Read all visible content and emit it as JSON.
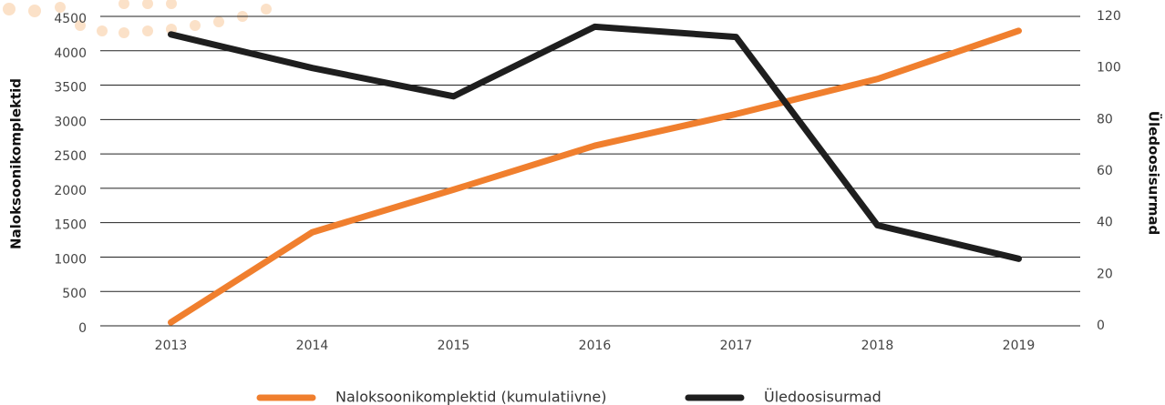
{
  "chart_data": {
    "type": "line",
    "ylabel": "Naloksoonikomplektid",
    "y2label": "Üledoosisurmad",
    "categories": [
      "2013",
      "2014",
      "2015",
      "2016",
      "2017",
      "2018",
      "2019"
    ],
    "series": [
      {
        "name": "Naloksoonikomplektid (kumulatiivne)",
        "color": "#f07f2e",
        "values": [
          50,
          1360,
          1980,
          2620,
          3080,
          3590,
          4290
        ]
      },
      {
        "name": "Üledoosisurmad",
        "color": "#1e1e1e",
        "axis": "y2",
        "values": [
          113,
          100,
          89,
          116,
          112,
          39,
          26
        ]
      }
    ],
    "ylim": [
      0,
      4500
    ],
    "yticks": [
      0,
      500,
      1000,
      1500,
      2000,
      2500,
      3000,
      3500,
      4000,
      4500
    ],
    "y2lim": [
      0,
      120
    ],
    "y2ticks": [
      0,
      20,
      40,
      60,
      80,
      100,
      120
    ],
    "grid": true
  }
}
